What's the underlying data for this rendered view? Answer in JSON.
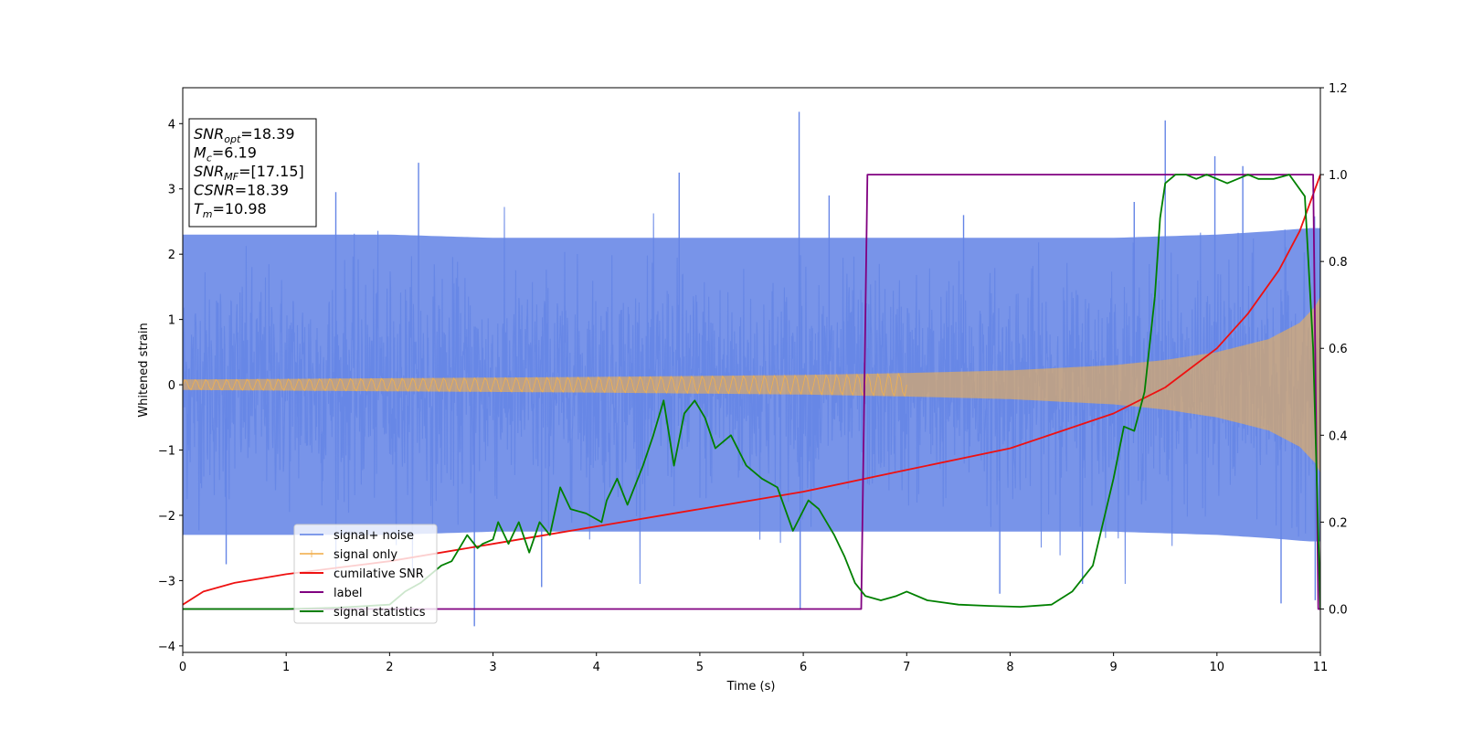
{
  "chart_data": {
    "type": "line",
    "xlabel": "Time (s)",
    "ylabel": "Whitened strain",
    "xlim": [
      0,
      11
    ],
    "ylim": [
      -4.1,
      4.55
    ],
    "ylim_right": [
      -0.1,
      1.2
    ],
    "x_ticks": [
      0,
      1,
      2,
      3,
      4,
      5,
      6,
      7,
      8,
      9,
      10,
      11
    ],
    "y_ticks": [
      -4,
      -3,
      -2,
      -1,
      0,
      1,
      2,
      3,
      4
    ],
    "y_right_ticks": [
      0.0,
      0.2,
      0.4,
      0.6,
      0.8,
      1.0,
      1.2
    ],
    "x_tick_labels": [
      "0",
      "1",
      "2",
      "3",
      "4",
      "5",
      "6",
      "7",
      "8",
      "9",
      "10",
      "11"
    ],
    "y_tick_labels": [
      "−4",
      "−3",
      "−2",
      "−1",
      "0",
      "1",
      "2",
      "3",
      "4"
    ],
    "y_right_tick_labels": [
      "0.0",
      "0.2",
      "0.4",
      "0.6",
      "0.8",
      "1.0",
      "1.2"
    ],
    "grid": false,
    "legend_position": "lower-left",
    "series": [
      {
        "name": "signal+ noise",
        "color": "#6585e6",
        "axis": "left",
        "style": "noise-band",
        "envelope": {
          "x": [
            0,
            1,
            2,
            3,
            4,
            5,
            6,
            7,
            8,
            9,
            10,
            10.5,
            10.9,
            11
          ],
          "upper": [
            2.3,
            2.3,
            2.3,
            2.25,
            2.25,
            2.25,
            2.25,
            2.25,
            2.25,
            2.25,
            2.3,
            2.35,
            2.4,
            2.4
          ],
          "lower": [
            -2.3,
            -2.3,
            -2.3,
            -2.25,
            -2.25,
            -2.25,
            -2.25,
            -2.25,
            -2.25,
            -2.25,
            -2.3,
            -2.35,
            -2.4,
            -2.4
          ]
        },
        "spikes": [
          {
            "x": 2.82,
            "y": -3.7
          },
          {
            "x": 5.96,
            "y": 4.18
          },
          {
            "x": 5.97,
            "y": -3.45
          },
          {
            "x": 9.5,
            "y": 4.05
          },
          {
            "x": 9.98,
            "y": 3.5
          },
          {
            "x": 2.28,
            "y": 3.4
          },
          {
            "x": 4.8,
            "y": 3.25
          },
          {
            "x": 10.25,
            "y": 3.35
          },
          {
            "x": 10.62,
            "y": -3.35
          },
          {
            "x": 10.95,
            "y": -3.3
          },
          {
            "x": 3.47,
            "y": -3.1
          },
          {
            "x": 1.48,
            "y": 2.95
          },
          {
            "x": 6.25,
            "y": 2.9
          },
          {
            "x": 7.9,
            "y": -3.2
          },
          {
            "x": 9.2,
            "y": 2.8
          },
          {
            "x": 0.42,
            "y": -2.75
          },
          {
            "x": 8.7,
            "y": -3.05
          },
          {
            "x": 7.55,
            "y": 2.6
          }
        ]
      },
      {
        "name": "signal only",
        "color": "#f2b04e",
        "axis": "left",
        "style": "chirp",
        "amplitude": {
          "x": [
            0,
            2,
            4,
            6,
            7,
            8,
            9,
            9.5,
            10,
            10.5,
            10.8,
            10.95,
            11
          ],
          "y": [
            0.08,
            0.1,
            0.12,
            0.15,
            0.18,
            0.22,
            0.3,
            0.38,
            0.5,
            0.7,
            0.95,
            1.2,
            1.35
          ]
        }
      },
      {
        "name": "cumilative SNR",
        "color": "#ee1111",
        "axis": "right",
        "x": [
          0,
          0.2,
          0.5,
          1,
          2,
          3,
          4,
          5,
          6,
          7,
          8,
          8.5,
          9,
          9.5,
          10,
          10.3,
          10.6,
          10.8,
          11
        ],
        "y": [
          0.01,
          0.04,
          0.06,
          0.08,
          0.11,
          0.15,
          0.19,
          0.23,
          0.27,
          0.32,
          0.37,
          0.41,
          0.45,
          0.51,
          0.6,
          0.68,
          0.78,
          0.87,
          1.0
        ]
      },
      {
        "name": "label",
        "color": "#800080",
        "axis": "right",
        "x": [
          0,
          6.56,
          6.62,
          10.93,
          10.98,
          11
        ],
        "y": [
          0,
          0,
          1,
          1,
          0,
          0
        ]
      },
      {
        "name": "signal statistics",
        "color": "#008000",
        "axis": "right",
        "x": [
          0,
          0.5,
          1,
          1.5,
          2,
          2.15,
          2.3,
          2.5,
          2.6,
          2.75,
          2.85,
          2.9,
          3.0,
          3.05,
          3.15,
          3.25,
          3.35,
          3.45,
          3.55,
          3.65,
          3.75,
          3.9,
          4.05,
          4.1,
          4.2,
          4.3,
          4.45,
          4.55,
          4.65,
          4.75,
          4.85,
          4.95,
          5.05,
          5.15,
          5.3,
          5.45,
          5.6,
          5.75,
          5.9,
          6.05,
          6.15,
          6.3,
          6.4,
          6.5,
          6.6,
          6.75,
          6.9,
          7.0,
          7.2,
          7.5,
          7.8,
          8.1,
          8.4,
          8.6,
          8.8,
          8.9,
          9.0,
          9.1,
          9.2,
          9.3,
          9.4,
          9.45,
          9.5,
          9.6,
          9.7,
          9.8,
          9.9,
          10.0,
          10.1,
          10.2,
          10.3,
          10.4,
          10.55,
          10.7,
          10.85,
          10.93,
          11.0
        ],
        "y": [
          0.0,
          0.0,
          0.0,
          0.003,
          0.01,
          0.04,
          0.06,
          0.1,
          0.11,
          0.17,
          0.14,
          0.15,
          0.16,
          0.2,
          0.15,
          0.2,
          0.13,
          0.2,
          0.17,
          0.28,
          0.23,
          0.22,
          0.2,
          0.25,
          0.3,
          0.24,
          0.33,
          0.4,
          0.48,
          0.33,
          0.45,
          0.48,
          0.44,
          0.37,
          0.4,
          0.33,
          0.3,
          0.28,
          0.18,
          0.25,
          0.23,
          0.17,
          0.12,
          0.06,
          0.03,
          0.02,
          0.03,
          0.04,
          0.02,
          0.01,
          0.007,
          0.005,
          0.01,
          0.04,
          0.1,
          0.2,
          0.3,
          0.42,
          0.41,
          0.5,
          0.72,
          0.9,
          0.98,
          1.0,
          1.0,
          0.99,
          1.0,
          0.99,
          0.98,
          0.99,
          1.0,
          0.99,
          0.99,
          1.0,
          0.95,
          0.6,
          0.0
        ]
      }
    ],
    "annotation": {
      "lines": [
        {
          "sym": "SNR",
          "sub": "opt",
          "val": "=18.39"
        },
        {
          "sym": "M",
          "sub": "c",
          "val": "=6.19"
        },
        {
          "sym": "SNR",
          "sub": "MF",
          "val": "=[17.15]"
        },
        {
          "sym": "CSNR",
          "sub": "",
          "val": "=18.39"
        },
        {
          "sym": "T",
          "sub": "m",
          "val": "=10.98"
        }
      ]
    }
  }
}
